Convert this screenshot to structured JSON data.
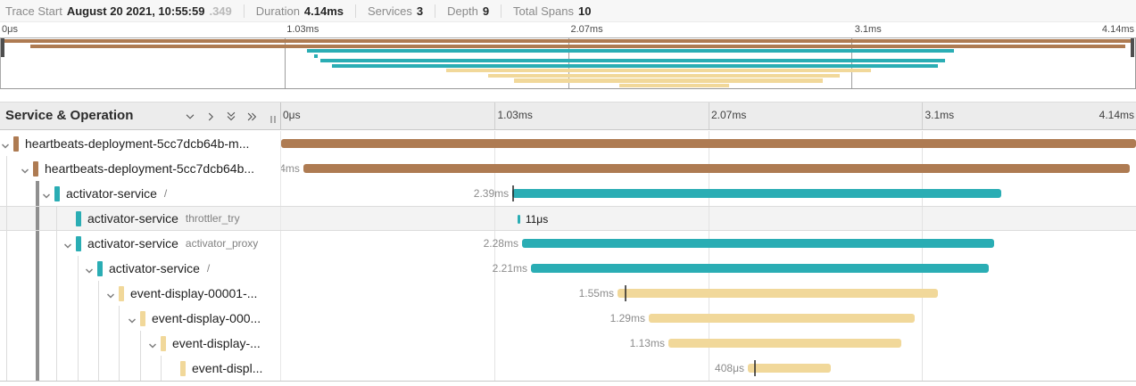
{
  "info_bar": {
    "trace_start_label": "Trace Start",
    "trace_start_value": "August 20 2021, 10:55:59",
    "trace_start_fraction": ".349",
    "duration_label": "Duration",
    "duration_value": "4.14ms",
    "services_label": "Services",
    "services_value": "3",
    "depth_label": "Depth",
    "depth_value": "9",
    "total_spans_label": "Total Spans",
    "total_spans_value": "10"
  },
  "ruler_ticks": [
    "0μs",
    "1.03ms",
    "2.07ms",
    "3.1ms",
    "4.14ms"
  ],
  "gantt": {
    "header_title": "Service & Operation",
    "header_icons": [
      "chevron-down",
      "chevron-right",
      "double-chevron-down",
      "double-chevron-right"
    ],
    "rows": [
      {
        "service": "heartbeats-deployment-5cc7dcb64b-m...",
        "operation": "",
        "duration_label": "",
        "color": "#ae7b52",
        "depth": 0,
        "expandable": true,
        "bar_start": 0.0,
        "bar_end": 1.0,
        "label_side": "none",
        "highlighted": false,
        "tick_at": null
      },
      {
        "service": "heartbeats-deployment-5cc7dcb64b...",
        "operation": "",
        "duration_label": "4ms",
        "color": "#ae7b52",
        "depth": 1,
        "expandable": true,
        "bar_start": 0.026,
        "bar_end": 0.993,
        "label_side": "left",
        "highlighted": false,
        "tick_at": null
      },
      {
        "service": "activator-service",
        "operation": "/",
        "duration_label": "2.39ms",
        "color": "#2aadb4",
        "depth": 2,
        "expandable": true,
        "bar_start": 0.2705,
        "bar_end": 0.842,
        "label_side": "left",
        "highlighted": false,
        "tick_at": 0.2705
      },
      {
        "service": "activator-service",
        "operation": "throttler_try",
        "duration_label": "11μs",
        "color": "#2aadb4",
        "depth": 3,
        "expandable": false,
        "bar_start": 0.2766,
        "bar_end": 0.2796,
        "label_side": "right",
        "highlighted": true,
        "tick_at": null
      },
      {
        "service": "activator-service",
        "operation": "activator_proxy",
        "duration_label": "2.28ms",
        "color": "#2aadb4",
        "depth": 3,
        "expandable": true,
        "bar_start": 0.2818,
        "bar_end": 0.834,
        "label_side": "left",
        "highlighted": false,
        "tick_at": null
      },
      {
        "service": "activator-service",
        "operation": "/",
        "duration_label": "2.21ms",
        "color": "#2aadb4",
        "depth": 4,
        "expandable": true,
        "bar_start": 0.2923,
        "bar_end": 0.8277,
        "label_side": "left",
        "highlighted": false,
        "tick_at": null
      },
      {
        "service": "event-display-00001-...",
        "operation": "",
        "duration_label": "1.55ms",
        "color": "#f1d89a",
        "depth": 5,
        "expandable": true,
        "bar_start": 0.3935,
        "bar_end": 0.7682,
        "label_side": "left",
        "highlighted": false,
        "tick_at": 0.4018
      },
      {
        "service": "event-display-000...",
        "operation": "",
        "duration_label": "1.29ms",
        "color": "#f1d89a",
        "depth": 6,
        "expandable": true,
        "bar_start": 0.43,
        "bar_end": 0.741,
        "label_side": "left",
        "highlighted": false,
        "tick_at": null
      },
      {
        "service": "event-display-...",
        "operation": "",
        "duration_label": "1.13ms",
        "color": "#f1d89a",
        "depth": 7,
        "expandable": true,
        "bar_start": 0.453,
        "bar_end": 0.7254,
        "label_side": "left",
        "highlighted": false,
        "tick_at": null
      },
      {
        "service": "event-displ...",
        "operation": "",
        "duration_label": "408μs",
        "color": "#f1d89a",
        "depth": 8,
        "expandable": false,
        "bar_start": 0.5459,
        "bar_end": 0.643,
        "label_side": "left",
        "highlighted": false,
        "tick_at": 0.5532
      }
    ]
  },
  "colors": {
    "brown": "#ae7b52",
    "teal": "#2aadb4",
    "cream": "#f1d89a",
    "duration_label_gray": "#8c8c8c",
    "highlight_row": "#f3f3f3",
    "header_bg": "#ececec"
  }
}
